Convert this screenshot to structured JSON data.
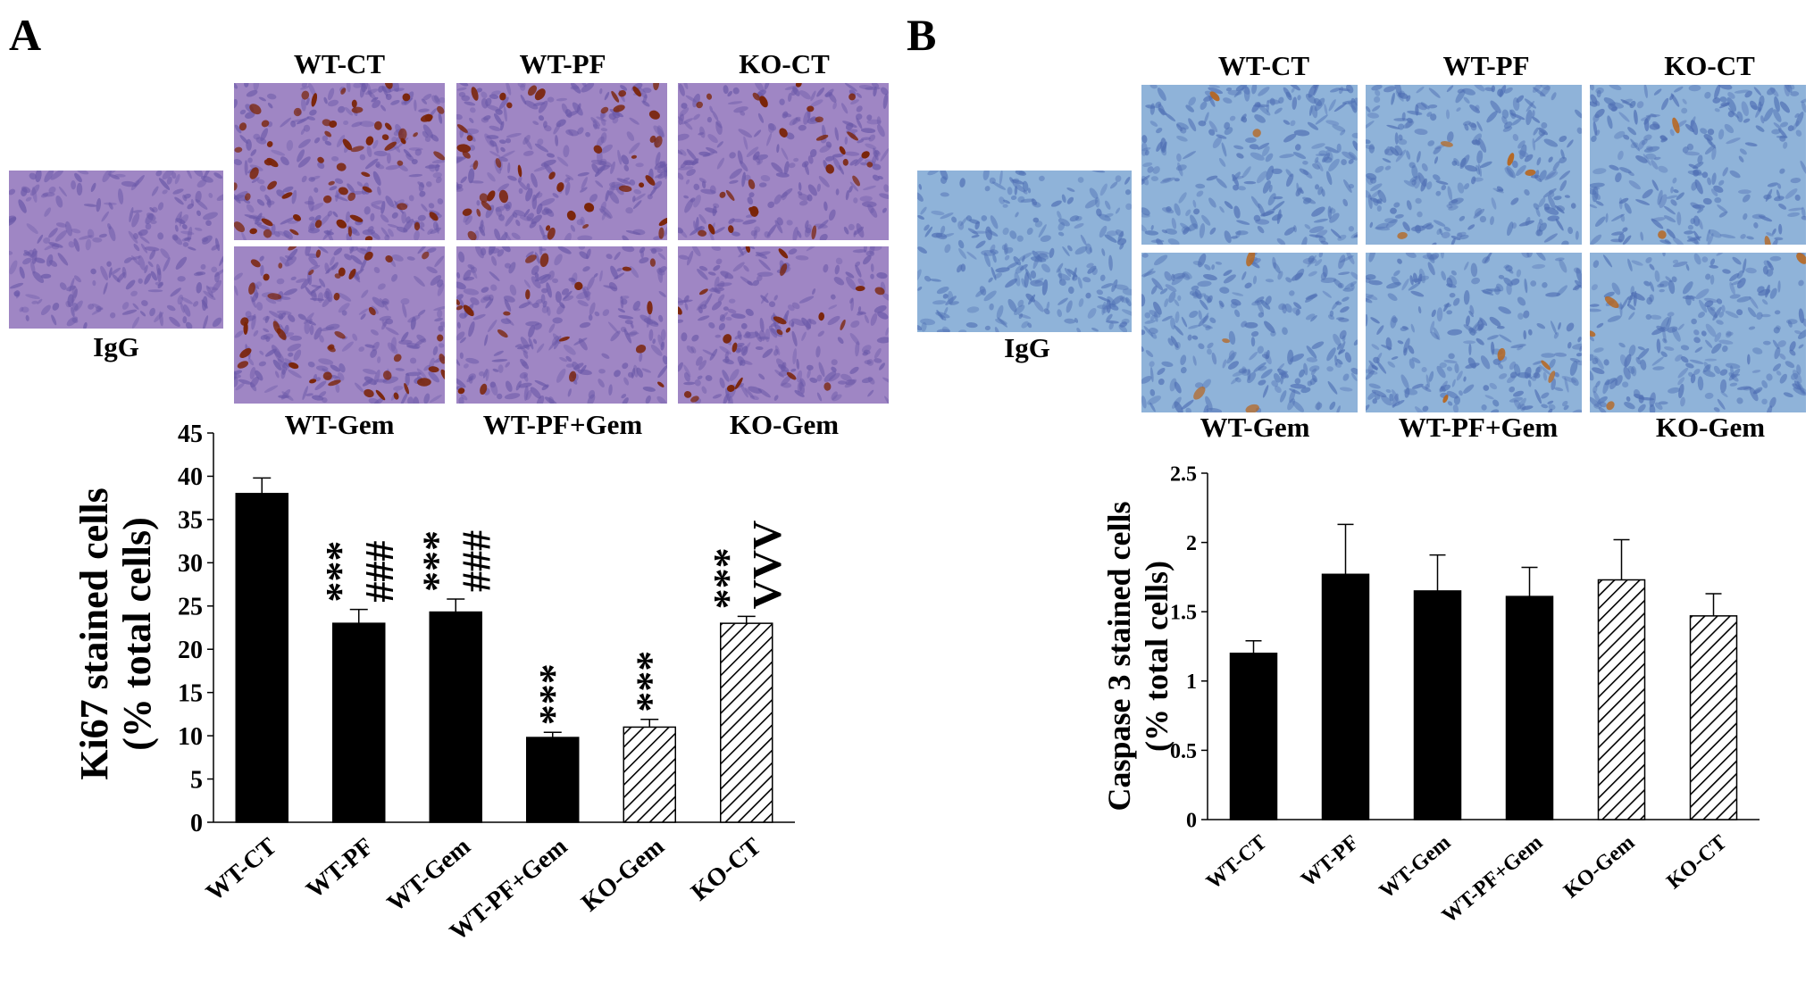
{
  "figure": {
    "panel_a": {
      "letter": "A",
      "micrograph_labels": {
        "igg": "IgG",
        "top": [
          "WT-CT",
          "WT-PF",
          "KO-CT"
        ],
        "bottom": [
          "WT-Gem",
          "WT-PF+Gem",
          "KO-Gem"
        ]
      },
      "stain_color": "#7a2408",
      "background_tint": "#9f86c4"
    },
    "panel_b": {
      "letter": "B",
      "micrograph_labels": {
        "igg": "IgG",
        "top": [
          "WT-CT",
          "WT-PF",
          "KO-CT"
        ],
        "bottom": [
          "WT-Gem",
          "WT-PF+Gem",
          "KO-Gem"
        ]
      },
      "stain_color": "#b8651c",
      "background_tint": "#8fb3d9"
    }
  },
  "chart_data": [
    {
      "type": "bar",
      "panel": "A",
      "categories": [
        "WT-CT",
        "WT-PF",
        "WT-Gem",
        "WT-PF+Gem",
        "KO-Gem",
        "KO-CT"
      ],
      "values": [
        38,
        23,
        24.3,
        9.8,
        11,
        23
      ],
      "errors": [
        1.8,
        1.6,
        1.5,
        0.6,
        0.9,
        0.8
      ],
      "fill": [
        "solid",
        "solid",
        "solid",
        "solid",
        "hatched",
        "hatched"
      ],
      "annotations": [
        "",
        "*** ###",
        "*** ###",
        "***",
        "***",
        "*** VVV"
      ],
      "ylabel_line1": "Ki67 stained cells",
      "ylabel_line2": "(% total cells)",
      "ylim": [
        0,
        45
      ],
      "yticks": [
        "0",
        "5",
        "10",
        "15",
        "20",
        "25",
        "30",
        "35",
        "40",
        "45"
      ],
      "grid": false,
      "bar_color": "#000000"
    },
    {
      "type": "bar",
      "panel": "B",
      "categories": [
        "WT-CT",
        "WT-PF",
        "WT-Gem",
        "WT-PF+Gem",
        "KO-Gem",
        "KO-CT"
      ],
      "values": [
        1.2,
        1.77,
        1.65,
        1.61,
        1.73,
        1.47
      ],
      "errors": [
        0.09,
        0.36,
        0.26,
        0.21,
        0.29,
        0.16
      ],
      "fill": [
        "solid",
        "solid",
        "solid",
        "solid",
        "hatched",
        "hatched"
      ],
      "annotations": [
        "",
        "",
        "",
        "",
        "",
        ""
      ],
      "ylabel_line1": "Caspase 3 stained cells",
      "ylabel_line2": "(% total cells)",
      "ylim": [
        0,
        2.5
      ],
      "yticks": [
        "0",
        "0.5",
        "1",
        "1.5",
        "2",
        "2.5"
      ],
      "grid": false,
      "bar_color": "#000000"
    }
  ]
}
